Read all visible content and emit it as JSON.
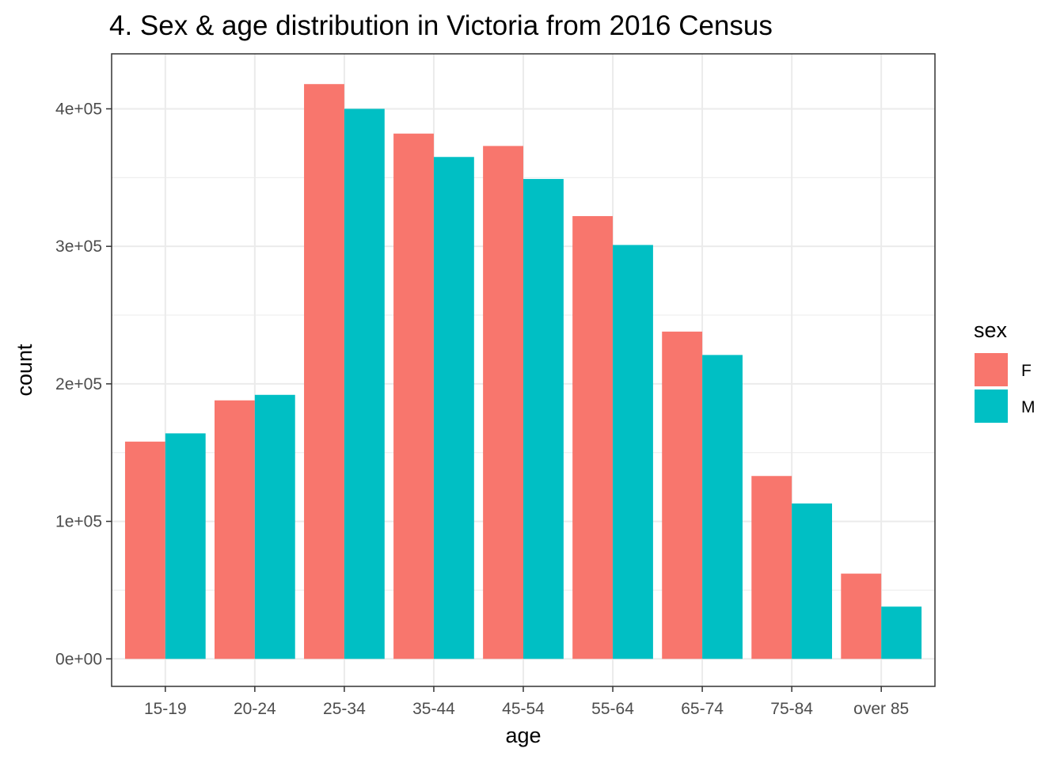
{
  "chart_data": {
    "type": "bar",
    "title": "4. Sex & age distribution in Victoria from 2016 Census",
    "xlabel": "age",
    "ylabel": "count",
    "categories": [
      "15-19",
      "20-24",
      "25-34",
      "35-44",
      "45-54",
      "55-64",
      "65-74",
      "75-84",
      "over 85"
    ],
    "series": [
      {
        "name": "F",
        "color": "#F8766D",
        "values": [
          158000,
          188000,
          418000,
          382000,
          373000,
          322000,
          238000,
          133000,
          62000
        ]
      },
      {
        "name": "M",
        "color": "#00BFC4",
        "values": [
          164000,
          192000,
          400000,
          365000,
          349000,
          301000,
          221000,
          113000,
          38000
        ]
      }
    ],
    "ylim": [
      -20000,
      440000
    ],
    "yticks": [
      0,
      100000,
      200000,
      300000,
      400000
    ],
    "ytick_labels": [
      "0e+00",
      "1e+05",
      "2e+05",
      "3e+05",
      "4e+05"
    ],
    "legend": {
      "title": "sex",
      "position": "right"
    },
    "grid": true
  }
}
